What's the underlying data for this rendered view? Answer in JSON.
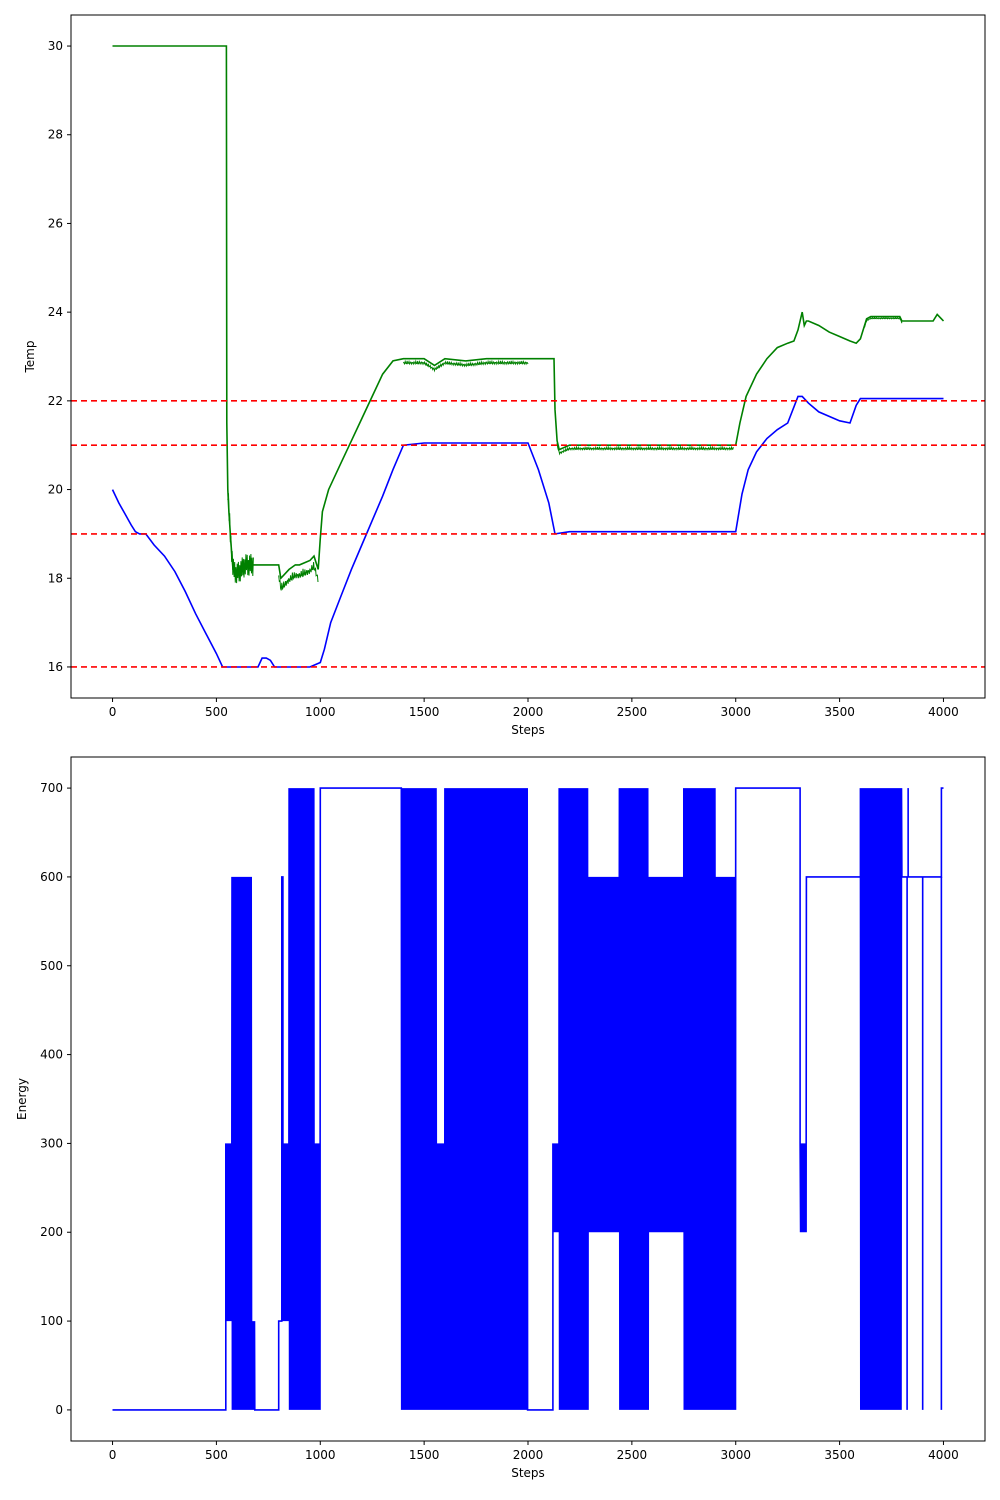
{
  "chart_data": [
    {
      "type": "line",
      "xlabel": "Steps",
      "ylabel": "Temp",
      "xlim": [
        -200,
        4200
      ],
      "ylim": [
        15.3,
        30.7
      ],
      "xticks": [
        0,
        500,
        1000,
        1500,
        2000,
        2500,
        3000,
        3500,
        4000
      ],
      "yticks": [
        16,
        18,
        20,
        22,
        24,
        26,
        28,
        30
      ],
      "grid": false,
      "reference_lines": [
        {
          "y": 22,
          "color": "#ff0000",
          "style": "dashed"
        },
        {
          "y": 21,
          "color": "#ff0000",
          "style": "dashed"
        },
        {
          "y": 19,
          "color": "#ff0000",
          "style": "dashed"
        },
        {
          "y": 16,
          "color": "#ff0000",
          "style": "dashed"
        }
      ],
      "series": [
        {
          "color": "#008000",
          "x": [
            0,
            548,
            550,
            555,
            560,
            570,
            580,
            600,
            640,
            680,
            700,
            750,
            800,
            810,
            830,
            850,
            880,
            900,
            950,
            970,
            990,
            1000,
            1010,
            1040,
            1100,
            1150,
            1200,
            1250,
            1300,
            1350,
            1400,
            1420,
            1500,
            1550,
            1600,
            1700,
            1800,
            1900,
            1950,
            2000,
            2050,
            2100,
            2125,
            2130,
            2140,
            2150,
            2200,
            2300,
            2400,
            2500,
            2600,
            2700,
            2800,
            2900,
            2980,
            3000,
            3020,
            3050,
            3100,
            3150,
            3200,
            3250,
            3280,
            3300,
            3320,
            3330,
            3340,
            3350,
            3400,
            3450,
            3500,
            3550,
            3580,
            3600,
            3630,
            3650,
            3700,
            3750,
            3790,
            3800,
            3850,
            3900,
            3950,
            3970,
            3990,
            4000
          ],
          "values": [
            30.0,
            30.0,
            21.5,
            20.0,
            19.5,
            18.8,
            18.2,
            18.1,
            18.3,
            18.3,
            18.3,
            18.3,
            18.3,
            18.0,
            18.1,
            18.2,
            18.3,
            18.3,
            18.4,
            18.5,
            18.2,
            18.9,
            19.5,
            20.0,
            20.6,
            21.1,
            21.6,
            22.1,
            22.6,
            22.9,
            22.95,
            22.95,
            22.95,
            22.8,
            22.95,
            22.9,
            22.95,
            22.95,
            22.95,
            22.95,
            22.95,
            22.95,
            22.95,
            21.8,
            21.1,
            20.9,
            21.0,
            21.0,
            21.0,
            21.0,
            21.0,
            21.0,
            21.0,
            21.0,
            21.0,
            21.0,
            21.5,
            22.1,
            22.6,
            22.95,
            23.2,
            23.3,
            23.35,
            23.6,
            24.0,
            23.7,
            23.8,
            23.8,
            23.7,
            23.55,
            23.45,
            23.35,
            23.3,
            23.4,
            23.85,
            23.9,
            23.9,
            23.9,
            23.9,
            23.8,
            23.8,
            23.8,
            23.8,
            23.95,
            23.85,
            23.8
          ]
        },
        {
          "color": "#0000ff",
          "x": [
            0,
            30,
            60,
            90,
            110,
            130,
            160,
            200,
            250,
            300,
            350,
            400,
            450,
            500,
            530,
            550,
            600,
            650,
            700,
            720,
            740,
            760,
            780,
            800,
            820,
            850,
            900,
            950,
            1000,
            1020,
            1050,
            1100,
            1150,
            1200,
            1250,
            1300,
            1350,
            1400,
            1500,
            1600,
            1700,
            1800,
            1900,
            2000,
            2050,
            2100,
            2130,
            2200,
            2300,
            2400,
            2500,
            2600,
            2700,
            2800,
            2900,
            3000,
            3030,
            3060,
            3100,
            3150,
            3200,
            3250,
            3300,
            3320,
            3350,
            3400,
            3450,
            3500,
            3550,
            3580,
            3600,
            3650,
            3700,
            3800,
            3900,
            3950,
            4000
          ],
          "values": [
            20.0,
            19.7,
            19.45,
            19.2,
            19.05,
            19.0,
            19.0,
            18.75,
            18.5,
            18.15,
            17.7,
            17.2,
            16.75,
            16.3,
            16.0,
            16.0,
            16.0,
            16.0,
            16.0,
            16.2,
            16.2,
            16.15,
            16.0,
            16.0,
            16.0,
            16.0,
            16.0,
            16.0,
            16.1,
            16.4,
            17.0,
            17.6,
            18.2,
            18.75,
            19.3,
            19.85,
            20.45,
            21.0,
            21.05,
            21.05,
            21.05,
            21.05,
            21.05,
            21.05,
            20.45,
            19.7,
            19.0,
            19.05,
            19.05,
            19.05,
            19.05,
            19.05,
            19.05,
            19.05,
            19.05,
            19.05,
            19.9,
            20.45,
            20.85,
            21.15,
            21.35,
            21.5,
            22.1,
            22.1,
            21.95,
            21.75,
            21.65,
            21.55,
            21.5,
            21.9,
            22.05,
            22.05,
            22.05,
            22.05,
            22.05,
            22.05,
            22.05
          ]
        }
      ]
    },
    {
      "type": "line",
      "xlabel": "Steps",
      "ylabel": "Energy",
      "xlim": [
        -200,
        4200
      ],
      "ylim": [
        -35,
        735
      ],
      "xticks": [
        0,
        500,
        1000,
        1500,
        2000,
        2500,
        3000,
        3500,
        4000
      ],
      "yticks": [
        0,
        100,
        200,
        300,
        400,
        500,
        600,
        700
      ],
      "grid": false,
      "series": [
        {
          "color": "#0000ff",
          "segments": [
            {
              "from": 0,
              "to": 545,
              "level": 0,
              "type": "constant"
            },
            {
              "from": 545,
              "to": 575,
              "lo": 100,
              "hi": 300,
              "type": "switching"
            },
            {
              "from": 575,
              "to": 670,
              "lo": 0,
              "hi": 600,
              "type": "switching"
            },
            {
              "from": 670,
              "to": 685,
              "lo": 0,
              "hi": 100,
              "type": "switching"
            },
            {
              "from": 685,
              "to": 800,
              "level": 0,
              "type": "constant"
            },
            {
              "from": 800,
              "to": 815,
              "level": 100,
              "type": "constant"
            },
            {
              "from": 815,
              "to": 820,
              "level": 600,
              "type": "constant"
            },
            {
              "from": 820,
              "to": 850,
              "lo": 100,
              "hi": 300,
              "type": "switching"
            },
            {
              "from": 850,
              "to": 970,
              "lo": 0,
              "hi": 700,
              "type": "switching"
            },
            {
              "from": 970,
              "to": 1000,
              "lo": 0,
              "hi": 300,
              "type": "switching"
            },
            {
              "from": 1000,
              "to": 1390,
              "level": 700,
              "type": "constant"
            },
            {
              "from": 1390,
              "to": 1560,
              "lo": 0,
              "hi": 700,
              "type": "switching"
            },
            {
              "from": 1560,
              "to": 1600,
              "lo": 0,
              "hi": 300,
              "type": "switching"
            },
            {
              "from": 1600,
              "to": 2000,
              "lo": 0,
              "hi": 700,
              "type": "switching"
            },
            {
              "from": 2000,
              "to": 2120,
              "level": 0,
              "type": "constant"
            },
            {
              "from": 2120,
              "to": 2150,
              "lo": 200,
              "hi": 300,
              "type": "switching"
            },
            {
              "from": 2150,
              "to": 2290,
              "lo": 0,
              "hi": 700,
              "type": "switching"
            },
            {
              "from": 2290,
              "to": 2440,
              "lo": 200,
              "hi": 600,
              "type": "switching"
            },
            {
              "from": 2440,
              "to": 2580,
              "lo": 0,
              "hi": 700,
              "type": "switching"
            },
            {
              "from": 2580,
              "to": 2750,
              "lo": 200,
              "hi": 600,
              "type": "switching"
            },
            {
              "from": 2750,
              "to": 2900,
              "lo": 0,
              "hi": 700,
              "type": "switching"
            },
            {
              "from": 2900,
              "to": 3000,
              "lo": 0,
              "hi": 600,
              "type": "switching"
            },
            {
              "from": 3000,
              "to": 3310,
              "level": 700,
              "type": "constant"
            },
            {
              "from": 3310,
              "to": 3340,
              "lo": 200,
              "hi": 300,
              "type": "switching"
            },
            {
              "from": 3340,
              "to": 3600,
              "level": 600,
              "type": "constant"
            },
            {
              "from": 3600,
              "to": 3800,
              "lo": 0,
              "hi": 700,
              "type": "switching"
            },
            {
              "from": 3800,
              "to": 3830,
              "level": 600,
              "type": "constant"
            },
            {
              "from": 3830,
              "to": 3900,
              "level": 600,
              "type": "constant"
            },
            {
              "from": 3900,
              "to": 3990,
              "level": 600,
              "type": "constant"
            },
            {
              "from": 3990,
              "to": 4000,
              "level": 700,
              "type": "constant"
            }
          ],
          "spikes": [
            {
              "x": 3825,
              "y": 0
            },
            {
              "x": 3830,
              "y": 700
            },
            {
              "x": 3900,
              "y": 0
            },
            {
              "x": 3990,
              "y": 0
            }
          ]
        }
      ]
    }
  ]
}
